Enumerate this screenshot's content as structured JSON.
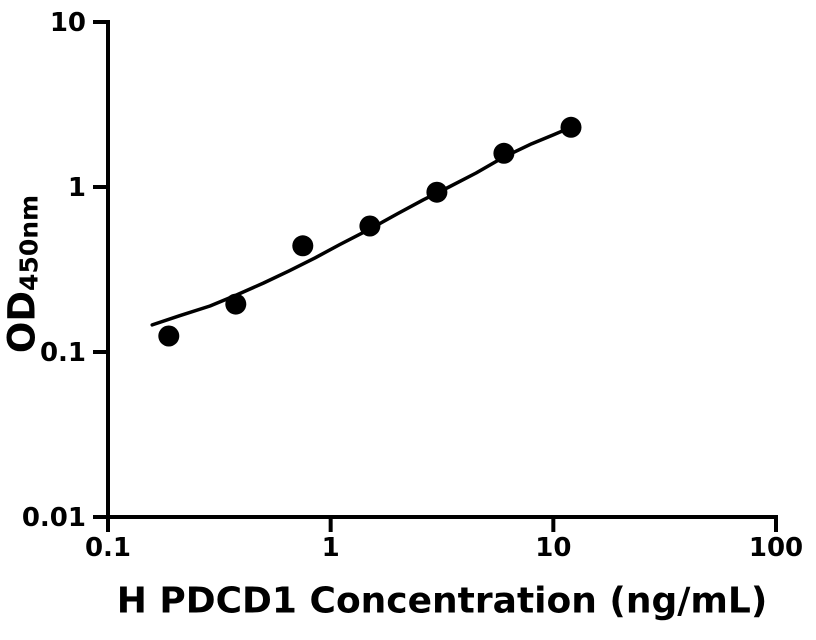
{
  "chart_data": {
    "type": "scatter",
    "title": "",
    "xlabel": "H PDCD1 Concentration (ng/mL)",
    "ylabel_main": "OD",
    "ylabel_sub": "450nm",
    "x_scale": "log",
    "y_scale": "log",
    "xlim": [
      0.1,
      100
    ],
    "ylim": [
      0.01,
      10
    ],
    "x_ticks": [
      0.1,
      1,
      10,
      100
    ],
    "x_tick_labels": [
      "0.1",
      "1",
      "10",
      "100"
    ],
    "y_ticks": [
      0.01,
      0.1,
      1,
      10
    ],
    "y_tick_labels": [
      "0.01",
      "0.1",
      "1",
      "10"
    ],
    "grid": false,
    "legend": "none",
    "colors": {
      "foreground": "#000000",
      "background": "#ffffff"
    },
    "series": [
      {
        "name": "standard-curve-points",
        "marker": "filled-circle",
        "color": "#000000",
        "points": [
          [
            0.1875,
            0.125
          ],
          [
            0.375,
            0.195
          ],
          [
            0.75,
            0.44
          ],
          [
            1.5,
            0.58
          ],
          [
            3,
            0.93
          ],
          [
            6,
            1.6
          ],
          [
            12,
            2.3
          ]
        ]
      }
    ],
    "fit_curve": {
      "name": "4pl-fit-line",
      "color": "#000000",
      "points": [
        [
          0.158,
          0.146
        ],
        [
          0.21,
          0.166
        ],
        [
          0.287,
          0.19
        ],
        [
          0.379,
          0.222
        ],
        [
          0.5,
          0.262
        ],
        [
          0.65,
          0.31
        ],
        [
          0.85,
          0.372
        ],
        [
          1.1,
          0.448
        ],
        [
          1.5,
          0.556
        ],
        [
          2.0,
          0.69
        ],
        [
          2.6,
          0.835
        ],
        [
          3.4,
          1.0
        ],
        [
          4.5,
          1.215
        ],
        [
          6.0,
          1.52
        ],
        [
          8.0,
          1.83
        ],
        [
          10.0,
          2.07
        ],
        [
          12.0,
          2.3
        ]
      ]
    }
  }
}
